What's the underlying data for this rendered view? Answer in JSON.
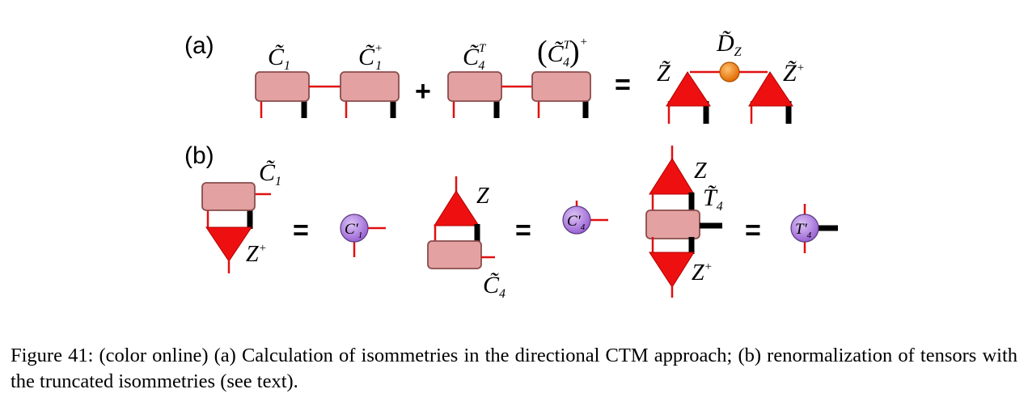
{
  "figure": {
    "panel_a_label": "(a)",
    "panel_b_label": "(b)",
    "plus_sign": "+",
    "equals_sign": "=",
    "tensor_labels": {
      "c1_tilde": "C̃",
      "c1_sub": "1",
      "c1_dagger_tilde": "C̃",
      "c1_dagger_sup": "+",
      "c1_dagger_sub": "1",
      "c4t_tilde": "C̃",
      "c4t_sup": "T",
      "c4t_sub": "4",
      "c4t_dagger_paren_open": "(",
      "c4t_dagger_tilde": "C̃",
      "c4t_dagger_sup_t": "T",
      "c4t_dagger_sub": "4",
      "c4t_dagger_paren_close": ")",
      "c4t_dagger_sup": "+",
      "z_tilde": "Z̃",
      "dz_tilde": "D̃",
      "dz_sub": "Z",
      "z_tilde_dagger": "Z̃",
      "z_tilde_dagger_sup": "+",
      "b_c1_tilde": "C̃",
      "b_c1_sub": "1",
      "b_zplus": "Z",
      "b_zplus_sup": "+",
      "b_c1prime": "C'",
      "b_c1prime_sub": "1",
      "b_z": "Z",
      "b_c4_tilde": "C̃",
      "b_c4_sub": "4",
      "b_c4prime": "C'",
      "b_c4prime_sub": "4",
      "b_z2": "Z",
      "b_t4_tilde": "T̃",
      "b_t4_sub": "4",
      "b_zplus2": "Z",
      "b_zplus2_sup": "+",
      "b_t4prime": "T'",
      "b_t4prime_sub": "4"
    },
    "colors": {
      "tensor_fill": "#e3a1a1",
      "isometry_red": "#ee1010",
      "leg_red": "#e01010",
      "dz_orange": "#f07d10",
      "renormalized_purple": "#b585e0"
    }
  },
  "caption": "Figure 41: (color online) (a) Calculation of isommetries in the directional CTM approach; (b) renormalization of tensors with the truncated isommetries (see text)."
}
